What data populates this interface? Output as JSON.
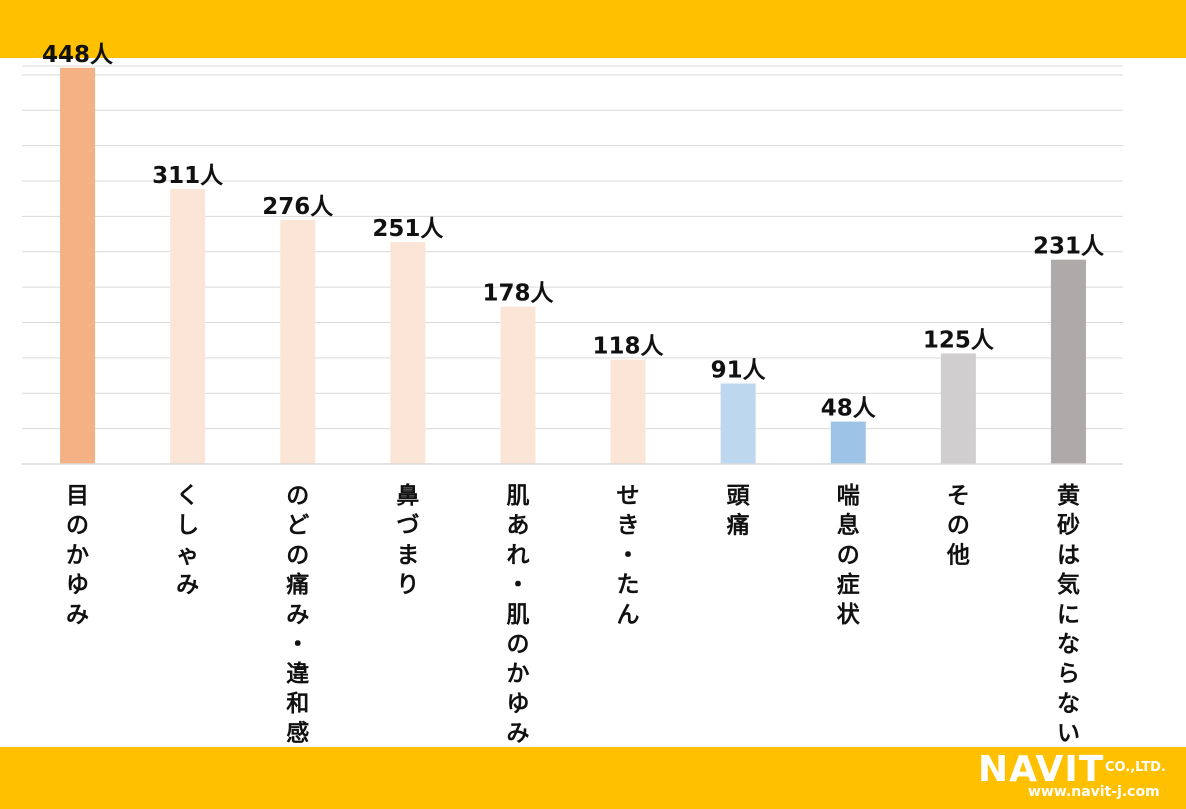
{
  "colors": {
    "band": "#FFC000",
    "grid": "#D9D9D9",
    "logo": "#FFFFFF"
  },
  "brand": {
    "name": "NAVIT",
    "suffix": "CO.,LTD.",
    "url": "www.navit-j.com"
  },
  "chart_data": {
    "type": "bar",
    "title": "",
    "xlabel": "",
    "ylabel": "",
    "ylim": [
      0,
      450
    ],
    "grid": true,
    "value_suffix": "人",
    "categories": [
      "目のかゆみ",
      "くしゃみ",
      "のどの痛み・違和感",
      "鼻づまり",
      "肌あれ・肌のかゆみ",
      "せき・たん",
      "頭痛",
      "喘息の症状",
      "その他",
      "黄砂は気にならない"
    ],
    "values": [
      448,
      311,
      276,
      251,
      178,
      118,
      91,
      48,
      125,
      231
    ],
    "bar_colors": [
      "#F4B183",
      "#FBE5D6",
      "#FBE5D6",
      "#FBE5D6",
      "#FBE5D6",
      "#FBE5D6",
      "#BDD7EE",
      "#9DC3E6",
      "#D0CECE",
      "#AEAAAA"
    ]
  }
}
